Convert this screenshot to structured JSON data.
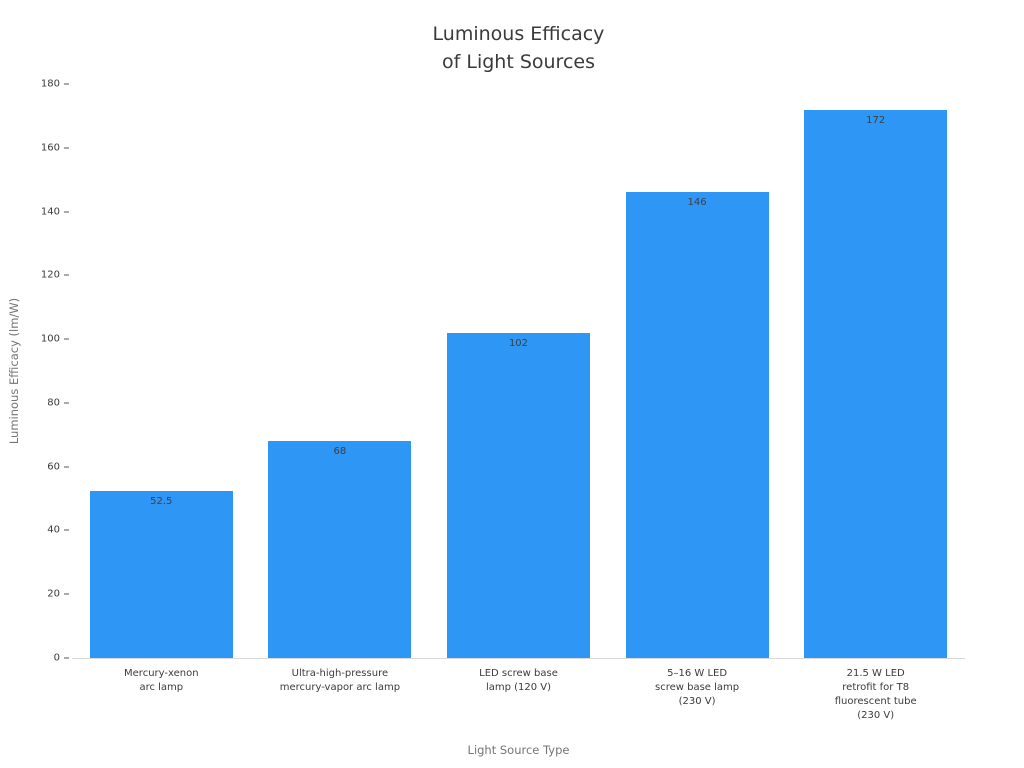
{
  "chart_data": {
    "type": "bar",
    "title": "Luminous Efficacy\nof Light Sources",
    "xlabel": "Light Source Type",
    "ylabel": "Luminous Efficacy (lm/W)",
    "categories": [
      "Mercury-xenon\narc lamp",
      "Ultra-high-pressure\nmercury-vapor arc lamp",
      "LED screw base\nlamp (120 V)",
      "5–16 W LED\nscrew base lamp\n(230 V)",
      "21.5 W LED\nretrofit for T8\nfluorescent tube\n(230 V)"
    ],
    "values": [
      52.5,
      68,
      102,
      146,
      172
    ],
    "value_labels": [
      "52.5",
      "68",
      "102",
      "146",
      "172"
    ],
    "ylim": [
      0,
      180
    ],
    "ytick_step": 20,
    "grid": false,
    "legend": null,
    "bar_color": "#2e96f5",
    "value_label_color": "#3b4045",
    "tick_label_color": "#3b3b3b",
    "axis_label_color": "#757575",
    "title_color": "#3a3a3a"
  }
}
